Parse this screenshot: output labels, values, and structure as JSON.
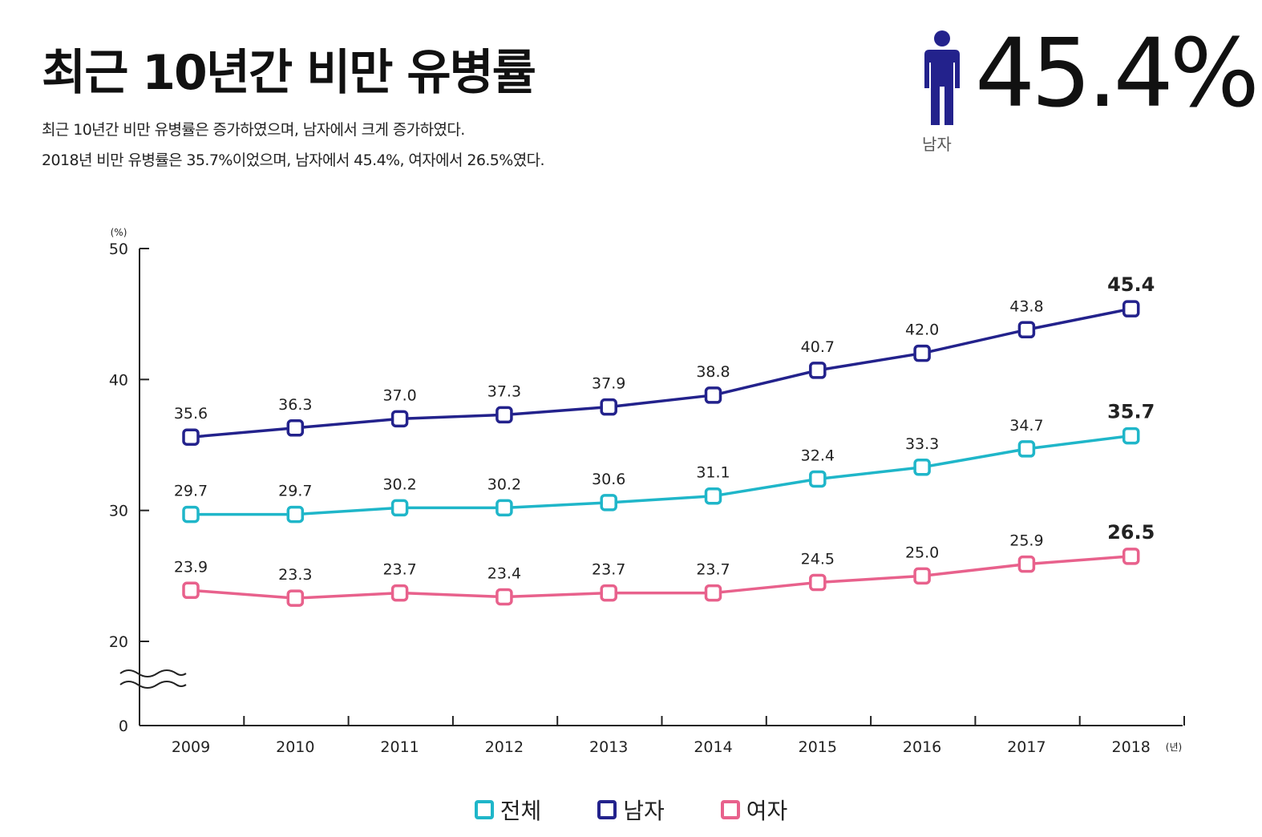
{
  "header": {
    "title": "최근 10년간 비만 유병률",
    "desc_lines": [
      "최근 10년간 비만 유병률은 증가하였으며, 남자에서 크게 증가하였다.",
      "2018년 비만 유병률은 35.7%이었으며, 남자에서 45.4%, 여자에서 26.5%였다."
    ],
    "figure_label": "남자",
    "big_stat": "45.4%"
  },
  "colors": {
    "total": "#1fb6c9",
    "male": "#23228c",
    "female": "#e8618c",
    "axis": "#222222"
  },
  "chart_data": {
    "type": "line",
    "x": [
      "2009",
      "2010",
      "2011",
      "2012",
      "2013",
      "2014",
      "2015",
      "2016",
      "2017",
      "2018"
    ],
    "y_unit": "(%)",
    "x_unit": "(년)",
    "y_ticks": [
      0,
      20,
      30,
      40,
      50
    ],
    "y_break": true,
    "ylim": [
      20,
      50
    ],
    "series": [
      {
        "key": "male",
        "name": "남자",
        "values": [
          35.6,
          36.3,
          37.0,
          37.3,
          37.9,
          38.8,
          40.7,
          42.0,
          43.8,
          45.4
        ],
        "labels": [
          "35.6",
          "36.3",
          "37.0",
          "37.3",
          "37.9",
          "38.8",
          "40.7",
          "42.0",
          "43.8",
          "45.4"
        ]
      },
      {
        "key": "total",
        "name": "전체",
        "values": [
          29.7,
          29.7,
          30.2,
          30.2,
          30.6,
          31.1,
          32.4,
          33.3,
          34.7,
          35.7
        ],
        "labels": [
          "29.7",
          "29.7",
          "30.2",
          "30.2",
          "30.6",
          "31.1",
          "32.4",
          "33.3",
          "34.7",
          "35.7"
        ]
      },
      {
        "key": "female",
        "name": "여자",
        "values": [
          23.9,
          23.3,
          23.7,
          23.4,
          23.7,
          23.7,
          24.5,
          25.0,
          25.9,
          26.5
        ],
        "labels": [
          "23.9",
          "23.3",
          "23.7",
          "23.4",
          "23.7",
          "23.7",
          "24.5",
          "25.0",
          "25.9",
          "26.5"
        ]
      }
    ],
    "legend": [
      {
        "key": "total",
        "label": "전체"
      },
      {
        "key": "male",
        "label": "남자"
      },
      {
        "key": "female",
        "label": "여자"
      }
    ],
    "legend_position": "bottom"
  }
}
